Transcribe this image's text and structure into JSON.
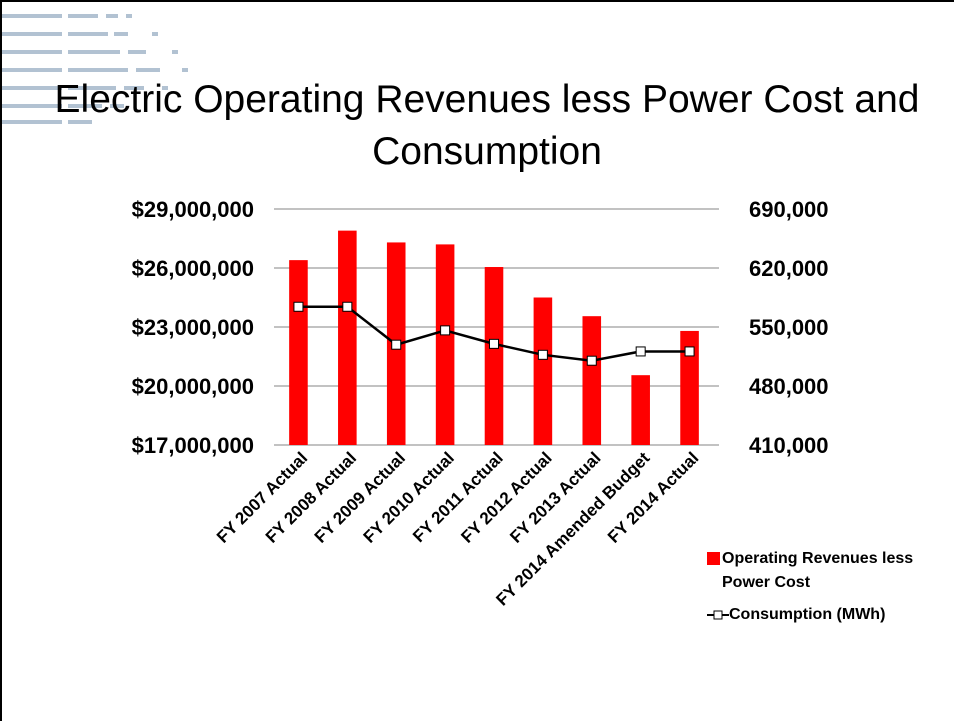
{
  "chart_data": {
    "type": "bar",
    "title": "Electric Operating Revenues less Power Cost and Consumption",
    "categories": [
      "FY 2007 Actual",
      "FY 2008 Actual",
      "FY 2009 Actual",
      "FY 2010 Actual",
      "FY 2011 Actual",
      "FY 2012 Actual",
      "FY 2013 Actual",
      "FY 2014 Amended Budget",
      "FY 2014 Actual"
    ],
    "series": [
      {
        "name": "Operating Revenues less Power Cost",
        "type": "bar",
        "color": "#ff0000",
        "values": [
          26400000,
          27900000,
          27300000,
          27200000,
          26050000,
          24500000,
          23550000,
          20550000,
          22800000
        ]
      },
      {
        "name": "Consumption (MWh)",
        "type": "line",
        "color": "#000000",
        "axis": "y2",
        "values": [
          574000,
          574000,
          529000,
          546000,
          530000,
          517000,
          510000,
          521000,
          521000
        ]
      }
    ],
    "ylim": [
      17000000,
      29000000
    ],
    "yticks": [
      {
        "value": 17000000,
        "label": "$17,000,000"
      },
      {
        "value": 20000000,
        "label": "$20,000,000"
      },
      {
        "value": 23000000,
        "label": "$23,000,000"
      },
      {
        "value": 26000000,
        "label": "$26,000,000"
      },
      {
        "value": 29000000,
        "label": "$29,000,000"
      }
    ],
    "y2lim": [
      410000,
      690000
    ],
    "y2ticks": [
      {
        "value": 410000,
        "label": "410,000"
      },
      {
        "value": 480000,
        "label": "480,000"
      },
      {
        "value": 550000,
        "label": "550,000"
      },
      {
        "value": 620000,
        "label": "620,000"
      },
      {
        "value": 690000,
        "label": "690,000"
      }
    ],
    "grid": true
  }
}
